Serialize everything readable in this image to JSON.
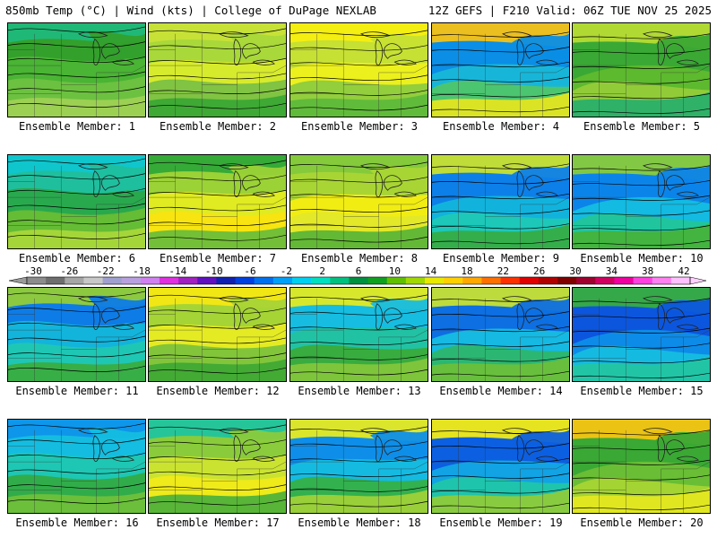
{
  "header": {
    "left_title": "850mb Temp (°C) | Wind (kts) | College of DuPage NEXLAB",
    "right_title": "12Z GEFS | F210 Valid: 06Z TUE NOV 25 2025"
  },
  "panels": [
    {
      "label": "Ensemble Member: 1",
      "palette": [
        "#33a02c",
        "#4cb535",
        "#6ec241",
        "#9fd154",
        "#20b97a"
      ],
      "shift": 0
    },
    {
      "label": "Ensemble Member: 2",
      "palette": [
        "#a9d83a",
        "#d9ec2c",
        "#7cc143",
        "#3aa834",
        "#c8e236"
      ],
      "shift": 1
    },
    {
      "label": "Ensemble Member: 3",
      "palette": [
        "#c6e034",
        "#eef01c",
        "#8ecb3e",
        "#5eb93a",
        "#f7ee10"
      ],
      "shift": 2
    },
    {
      "label": "Ensemble Member: 4",
      "palette": [
        "#0a8ee6",
        "#18b8d8",
        "#4fc66c",
        "#e2e620",
        "#f8c214"
      ],
      "shift": 3
    },
    {
      "label": "Ensemble Member: 5",
      "palette": [
        "#3aa834",
        "#5fb92e",
        "#93cc39",
        "#2aaf6a",
        "#b7db34"
      ],
      "shift": 4
    },
    {
      "label": "Ensemble Member: 6",
      "palette": [
        "#1fbf9e",
        "#2aa84a",
        "#68bd34",
        "#a9d73a",
        "#0fc6d0"
      ],
      "shift": 0
    },
    {
      "label": "Ensemble Member: 7",
      "palette": [
        "#9bd236",
        "#e4ec22",
        "#f8e410",
        "#6bbd3a",
        "#2fa838"
      ],
      "shift": 1
    },
    {
      "label": "Ensemble Member: 8",
      "palette": [
        "#a8d534",
        "#f4ee12",
        "#e2e82a",
        "#5cb536",
        "#82c93c"
      ],
      "shift": 2
    },
    {
      "label": "Ensemble Member: 9",
      "palette": [
        "#0d7fe8",
        "#12b6dc",
        "#1fc9b6",
        "#36ad44",
        "#c9e12e"
      ],
      "shift": 3
    },
    {
      "label": "Ensemble Member: 10",
      "palette": [
        "#0b84ea",
        "#14bde0",
        "#21c59a",
        "#44b33a",
        "#8acb3c"
      ],
      "shift": 4
    },
    {
      "label": "Ensemble Member: 11",
      "palette": [
        "#0e7ce6",
        "#13b7da",
        "#20c8b2",
        "#3aad40",
        "#94ce38"
      ],
      "shift": 0
    },
    {
      "label": "Ensemble Member: 12",
      "palette": [
        "#a5d436",
        "#e8ec22",
        "#7cc33c",
        "#3fa934",
        "#f4e814"
      ],
      "shift": 1
    },
    {
      "label": "Ensemble Member: 13",
      "palette": [
        "#16bde0",
        "#22c2a0",
        "#3aab3a",
        "#82c63c",
        "#e2ea22"
      ],
      "shift": 2
    },
    {
      "label": "Ensemble Member: 14",
      "palette": [
        "#0d6fe2",
        "#16bde0",
        "#2cb66c",
        "#6cbf3a",
        "#c8e034"
      ],
      "shift": 3
    },
    {
      "label": "Ensemble Member: 15",
      "palette": [
        "#0c56de",
        "#0e8ee8",
        "#16bde0",
        "#22c5a2",
        "#38ad40"
      ],
      "shift": 4
    },
    {
      "label": "Ensemble Member: 16",
      "palette": [
        "#14bde0",
        "#1fc7b0",
        "#33ab44",
        "#6fc03a",
        "#0e94ea"
      ],
      "shift": 0
    },
    {
      "label": "Ensemble Member: 17",
      "palette": [
        "#8acb3c",
        "#cde430",
        "#f0ea18",
        "#4fb23a",
        "#20c49e"
      ],
      "shift": 1
    },
    {
      "label": "Ensemble Member: 18",
      "palette": [
        "#0e8ee8",
        "#16bde0",
        "#34b046",
        "#9fd138",
        "#e6ea22"
      ],
      "shift": 2
    },
    {
      "label": "Ensemble Member: 19",
      "palette": [
        "#0c5fe0",
        "#12a6e4",
        "#20c6a8",
        "#8fcb3a",
        "#f2ea16"
      ],
      "shift": 3
    },
    {
      "label": "Ensemble Member: 20",
      "palette": [
        "#3aa834",
        "#6cbf36",
        "#a7d534",
        "#e4e820",
        "#f4c414"
      ],
      "shift": 4
    }
  ],
  "colorbar": {
    "labels": [
      "-30",
      "-26",
      "-22",
      "-18",
      "-14",
      "-10",
      "-6",
      "-2",
      "2",
      "6",
      "10",
      "14",
      "18",
      "22",
      "26",
      "30",
      "34",
      "38",
      "42"
    ],
    "colors": [
      "#8c8c8c",
      "#6e6e6e",
      "#a6a6a6",
      "#c8c8c8",
      "#a0a0d0",
      "#b8a0e0",
      "#d080f0",
      "#e030e0",
      "#a020c0",
      "#6010c0",
      "#1020b0",
      "#0040e0",
      "#0070f0",
      "#00a0f8",
      "#00d0f0",
      "#00e0c0",
      "#00c080",
      "#009040",
      "#10a020",
      "#60c000",
      "#a0d800",
      "#e8e800",
      "#ffd000",
      "#ffa800",
      "#ff7000",
      "#ff3000",
      "#e00000",
      "#b00000",
      "#800000",
      "#a00030",
      "#d00060",
      "#f000a0",
      "#ff40e0",
      "#ff80f0",
      "#ffc0ff"
    ]
  }
}
